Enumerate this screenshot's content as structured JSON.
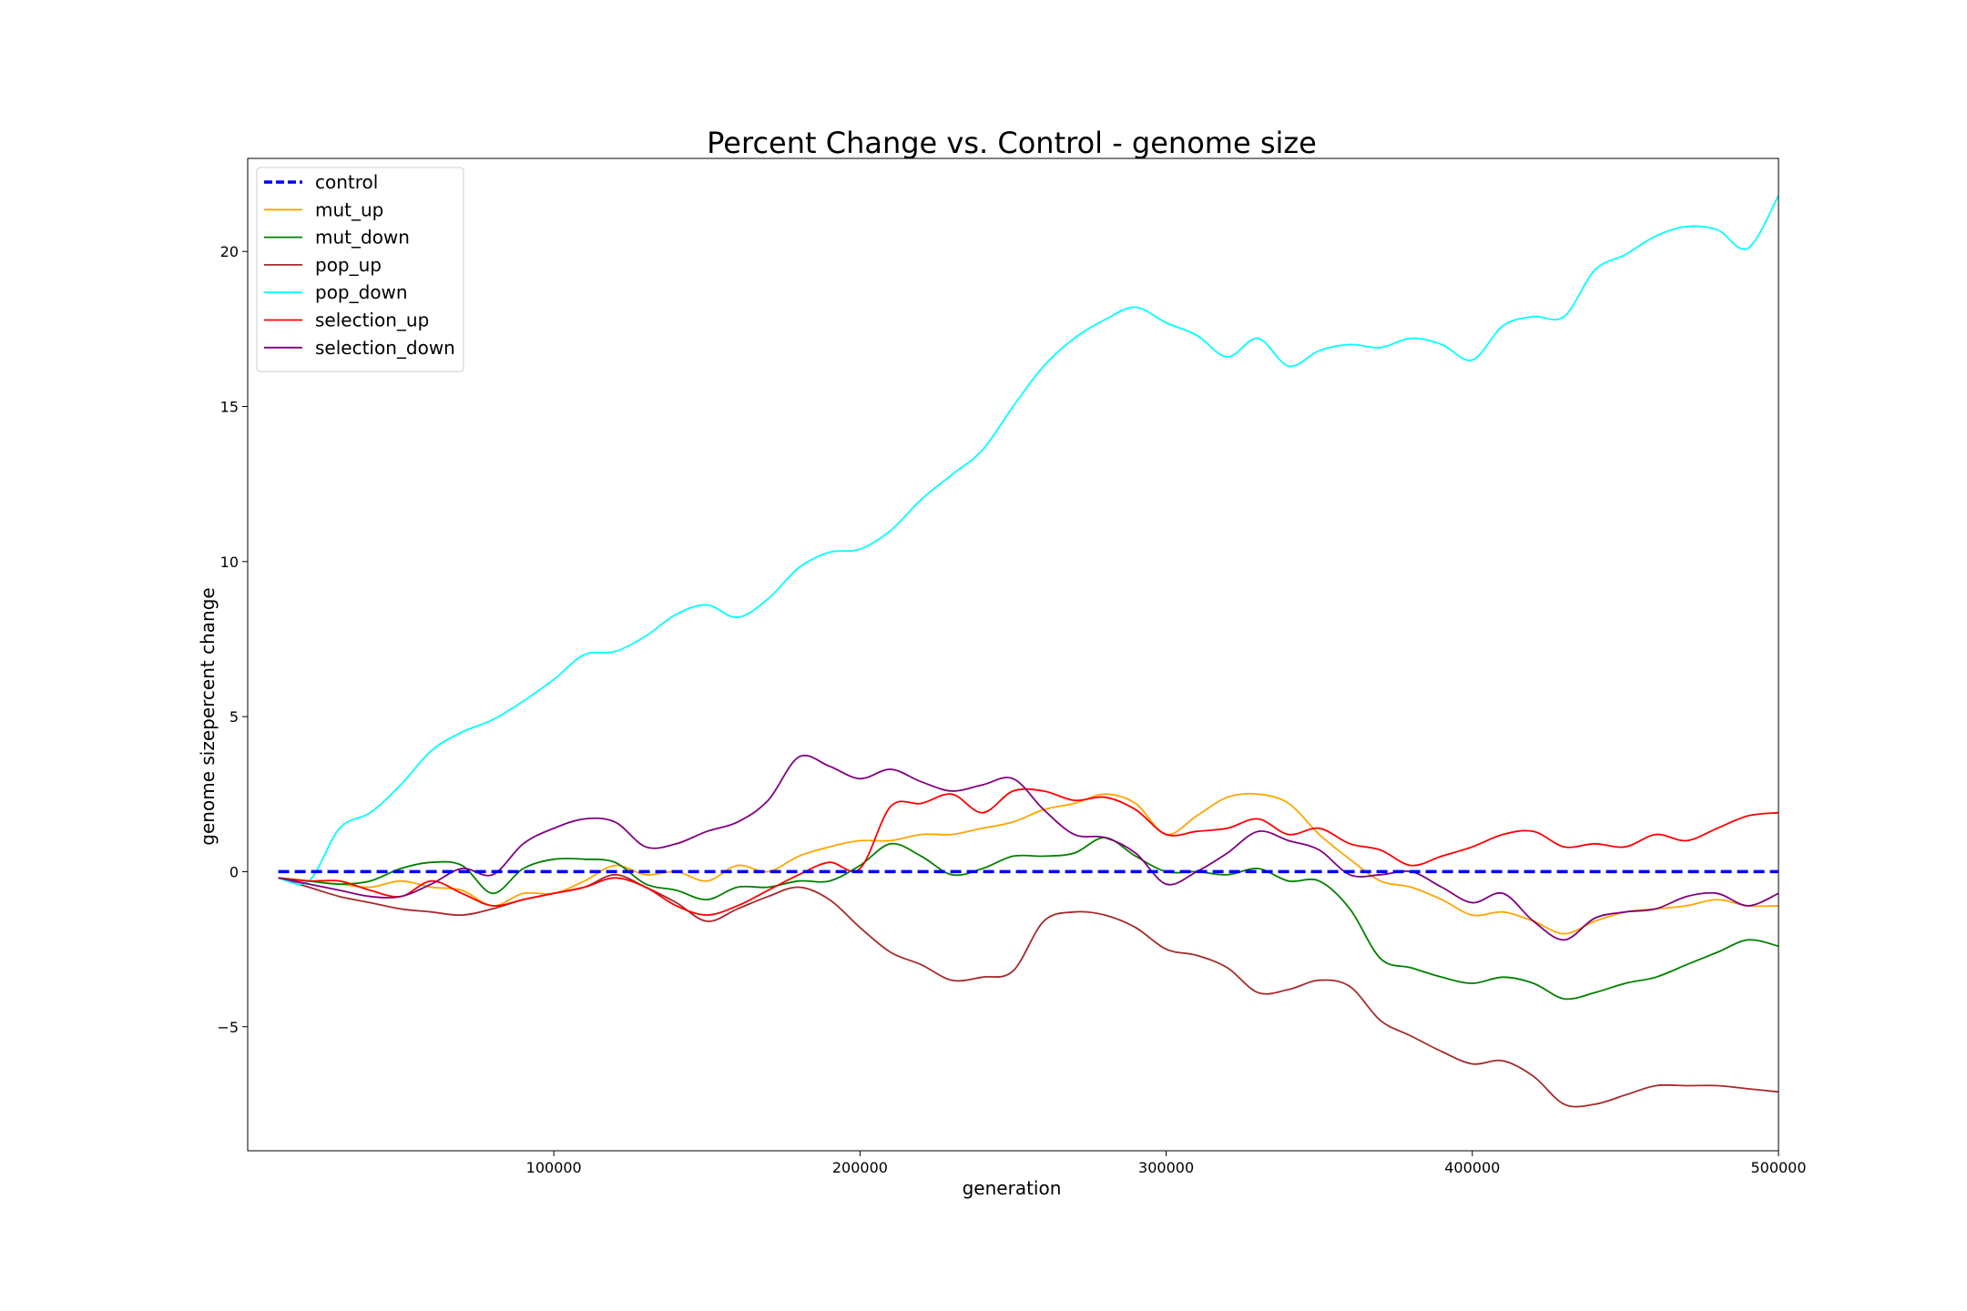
{
  "chart_data": {
    "type": "line",
    "title": "Percent Change vs. Control - genome size",
    "xlabel": "generation",
    "ylabel": "genome sizepercent change",
    "xlim": [
      0,
      500000
    ],
    "ylim": [
      -9,
      23
    ],
    "xticks": [
      100000,
      200000,
      300000,
      400000,
      500000
    ],
    "yticks": [
      -5,
      0,
      5,
      10,
      15,
      20
    ],
    "xtick_labels": [
      "100000",
      "200000",
      "300000",
      "400000",
      "500000"
    ],
    "ytick_labels": [
      "−5",
      "0",
      "5",
      "10",
      "15",
      "20"
    ],
    "grid": false,
    "legend_position": "top-left",
    "x": [
      10000,
      20000,
      30000,
      40000,
      50000,
      60000,
      70000,
      80000,
      90000,
      100000,
      110000,
      120000,
      130000,
      140000,
      150000,
      160000,
      170000,
      180000,
      190000,
      200000,
      210000,
      220000,
      230000,
      240000,
      250000,
      260000,
      270000,
      280000,
      290000,
      300000,
      310000,
      320000,
      330000,
      340000,
      350000,
      360000,
      370000,
      380000,
      390000,
      400000,
      410000,
      420000,
      430000,
      440000,
      450000,
      460000,
      470000,
      480000,
      490000,
      500000
    ],
    "series": [
      {
        "name": "control",
        "color": "#0000ff",
        "dashed": true,
        "values": [
          0,
          0,
          0,
          0,
          0,
          0,
          0,
          0,
          0,
          0,
          0,
          0,
          0,
          0,
          0,
          0,
          0,
          0,
          0,
          0,
          0,
          0,
          0,
          0,
          0,
          0,
          0,
          0,
          0,
          0,
          0,
          0,
          0,
          0,
          0,
          0,
          0,
          0,
          0,
          0,
          0,
          0,
          0,
          0,
          0,
          0,
          0,
          0,
          0,
          0
        ]
      },
      {
        "name": "mut_up",
        "color": "#ffa500",
        "values": [
          -0.2,
          -0.3,
          -0.4,
          -0.5,
          -0.3,
          -0.5,
          -0.6,
          -1.1,
          -0.7,
          -0.7,
          -0.3,
          0.2,
          -0.1,
          0.0,
          -0.3,
          0.2,
          0.0,
          0.5,
          0.8,
          1.0,
          1.0,
          1.2,
          1.2,
          1.4,
          1.6,
          2.0,
          2.2,
          2.5,
          2.2,
          1.2,
          1.8,
          2.4,
          2.5,
          2.2,
          1.2,
          0.4,
          -0.3,
          -0.5,
          -0.9,
          -1.4,
          -1.3,
          -1.6,
          -2.0,
          -1.6,
          -1.3,
          -1.2,
          -1.1,
          -0.9,
          -1.1,
          -1.1
        ]
      },
      {
        "name": "mut_down",
        "color": "#008000",
        "values": [
          -0.2,
          -0.3,
          -0.4,
          -0.3,
          0.1,
          0.3,
          0.2,
          -0.7,
          0.1,
          0.4,
          0.4,
          0.3,
          -0.4,
          -0.6,
          -0.9,
          -0.5,
          -0.5,
          -0.3,
          -0.3,
          0.2,
          0.9,
          0.5,
          -0.1,
          0.1,
          0.5,
          0.5,
          0.6,
          1.1,
          0.5,
          0.0,
          0.0,
          -0.1,
          0.1,
          -0.3,
          -0.3,
          -1.2,
          -2.8,
          -3.1,
          -3.4,
          -3.6,
          -3.4,
          -3.6,
          -4.1,
          -3.9,
          -3.6,
          -3.4,
          -3.0,
          -2.6,
          -2.2,
          -2.4
        ]
      },
      {
        "name": "pop_up",
        "color": "#a52a2a",
        "values": [
          -0.2,
          -0.5,
          -0.8,
          -1.0,
          -1.2,
          -1.3,
          -1.4,
          -1.2,
          -0.9,
          -0.7,
          -0.5,
          -0.1,
          -0.5,
          -1.0,
          -1.6,
          -1.2,
          -0.8,
          -0.5,
          -0.9,
          -1.8,
          -2.6,
          -3.0,
          -3.5,
          -3.4,
          -3.2,
          -1.6,
          -1.3,
          -1.4,
          -1.8,
          -2.5,
          -2.7,
          -3.1,
          -3.9,
          -3.8,
          -3.5,
          -3.7,
          -4.8,
          -5.3,
          -5.8,
          -6.2,
          -6.1,
          -6.6,
          -7.5,
          -7.5,
          -7.2,
          -6.9,
          -6.9,
          -6.9,
          -7.0,
          -7.1
        ]
      },
      {
        "name": "pop_down",
        "color": "#00ffff",
        "values": [
          -0.2,
          -0.3,
          1.4,
          1.9,
          2.8,
          3.9,
          4.5,
          4.9,
          5.5,
          6.2,
          7.0,
          7.1,
          7.6,
          8.3,
          8.6,
          8.2,
          8.8,
          9.8,
          10.3,
          10.4,
          11.0,
          12.0,
          12.8,
          13.6,
          15.0,
          16.3,
          17.2,
          17.8,
          18.2,
          17.7,
          17.3,
          16.6,
          17.2,
          16.3,
          16.8,
          17.0,
          16.9,
          17.2,
          17.0,
          16.5,
          17.6,
          17.9,
          17.9,
          19.4,
          19.9,
          20.5,
          20.8,
          20.7,
          20.1,
          21.8
        ]
      },
      {
        "name": "selection_up",
        "color": "#ff0000",
        "values": [
          -0.2,
          -0.3,
          -0.3,
          -0.6,
          -0.8,
          -0.3,
          -0.7,
          -1.1,
          -0.9,
          -0.7,
          -0.5,
          -0.2,
          -0.5,
          -1.1,
          -1.4,
          -1.1,
          -0.6,
          -0.1,
          0.3,
          0.1,
          2.1,
          2.2,
          2.5,
          1.9,
          2.6,
          2.6,
          2.3,
          2.4,
          2.0,
          1.2,
          1.3,
          1.4,
          1.7,
          1.2,
          1.4,
          0.9,
          0.7,
          0.2,
          0.5,
          0.8,
          1.2,
          1.3,
          0.8,
          0.9,
          0.8,
          1.2,
          1.0,
          1.4,
          1.8,
          1.9
        ]
      },
      {
        "name": "selection_down",
        "color": "#800080",
        "values": [
          -0.2,
          -0.4,
          -0.6,
          -0.8,
          -0.8,
          -0.4,
          0.1,
          -0.1,
          0.9,
          1.4,
          1.7,
          1.6,
          0.8,
          0.9,
          1.3,
          1.6,
          2.3,
          3.7,
          3.4,
          3.0,
          3.3,
          2.9,
          2.6,
          2.8,
          3.0,
          2.0,
          1.2,
          1.1,
          0.6,
          -0.4,
          0.0,
          0.6,
          1.3,
          1.0,
          0.7,
          -0.1,
          -0.1,
          0.0,
          -0.5,
          -1.0,
          -0.7,
          -1.6,
          -2.2,
          -1.5,
          -1.3,
          -1.2,
          -0.8,
          -0.7,
          -1.1,
          -0.7
        ]
      }
    ]
  }
}
